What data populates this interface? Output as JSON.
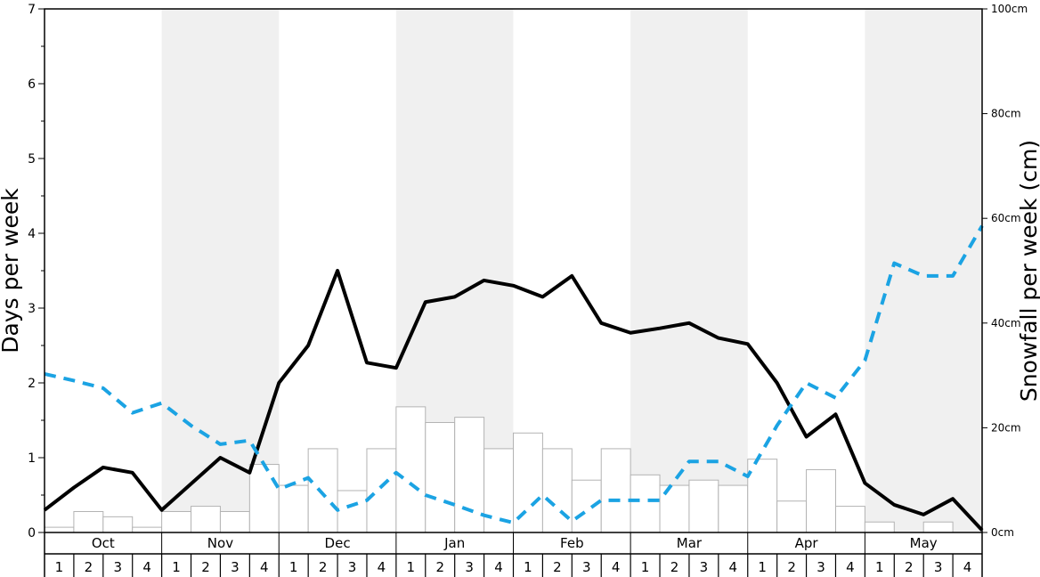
{
  "chart_data": {
    "type": "bar",
    "months": [
      "Oct",
      "Nov",
      "Dec",
      "Jan",
      "Feb",
      "Mar",
      "Apr",
      "May"
    ],
    "weeks": [
      "1",
      "2",
      "3",
      "4"
    ],
    "ylabel": "Days per week",
    "y2label": "Snowfall per week (cm)",
    "ylim": [
      0,
      7
    ],
    "y2lim": [
      0,
      100
    ],
    "yticks": [
      "0",
      "1",
      "2",
      "3",
      "4",
      "5",
      "6",
      "7"
    ],
    "y2ticks": [
      "0cm",
      "20cm",
      "40cm",
      "60cm",
      "80cm",
      "100cm"
    ],
    "grid": false,
    "shaded_months": [
      "Nov",
      "Jan",
      "Mar",
      "May"
    ],
    "colors": {
      "bar_fill": "#ffffff",
      "bar_stroke": "#b3b3b3",
      "snow_days_line": "#000000",
      "sun_days_line": "#1ba3e3",
      "shade": "#f0f0f0"
    },
    "series": [
      {
        "type": "bar",
        "axis": "right",
        "values": [
          1,
          4,
          3,
          1,
          4,
          5,
          4,
          13,
          9,
          16,
          8,
          16,
          24,
          21,
          22,
          16,
          19,
          16,
          10,
          16,
          11,
          9,
          10,
          9,
          14,
          6,
          12,
          5,
          2,
          0,
          2,
          0
        ]
      },
      {
        "type": "line",
        "axis": "left",
        "style": "solid",
        "values": [
          0.3,
          0.6,
          0.87,
          0.8,
          0.3,
          0.65,
          1.0,
          0.8,
          2.0,
          2.5,
          3.5,
          2.27,
          2.2,
          3.08,
          3.15,
          3.37,
          3.3,
          3.15,
          3.43,
          2.8,
          2.67,
          2.73,
          2.8,
          2.6,
          2.52,
          2.0,
          1.28,
          1.58,
          0.66,
          0.37,
          0.24,
          0.45,
          0.03
        ]
      },
      {
        "type": "line",
        "axis": "left",
        "style": "dashed",
        "values": [
          2.12,
          2.03,
          1.93,
          1.6,
          1.73,
          1.43,
          1.18,
          1.23,
          0.58,
          0.73,
          0.3,
          0.43,
          0.8,
          0.5,
          0.37,
          0.23,
          0.13,
          0.5,
          0.15,
          0.43,
          0.43,
          0.43,
          0.95,
          0.95,
          0.75,
          1.43,
          2.0,
          1.8,
          2.3,
          3.6,
          3.43,
          3.43,
          4.1
        ]
      }
    ]
  }
}
